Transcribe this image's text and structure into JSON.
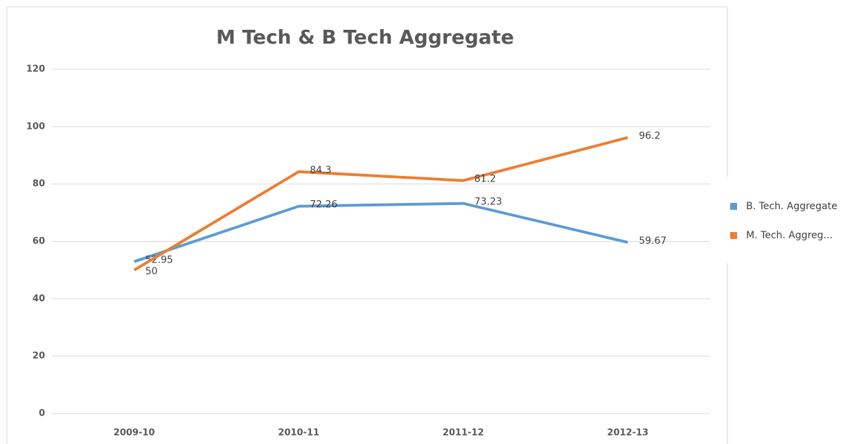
{
  "chart_data": {
    "type": "line",
    "title": "M Tech & B Tech Aggregate",
    "categories": [
      "2009-10",
      "2010-11",
      "2011-12",
      "2012-13"
    ],
    "series": [
      {
        "name": "B. Tech. Aggregate",
        "color": "#5b9bd5",
        "values": [
          52.95,
          72.26,
          73.23,
          59.67
        ]
      },
      {
        "name": "M. Tech. Aggreg...",
        "color": "#ed7d31",
        "values": [
          50,
          84.3,
          81.2,
          96.2
        ]
      }
    ],
    "ylim": [
      0,
      120
    ],
    "yticks": [
      0,
      20,
      40,
      60,
      80,
      100,
      120
    ],
    "grid": true,
    "legend": "right"
  }
}
